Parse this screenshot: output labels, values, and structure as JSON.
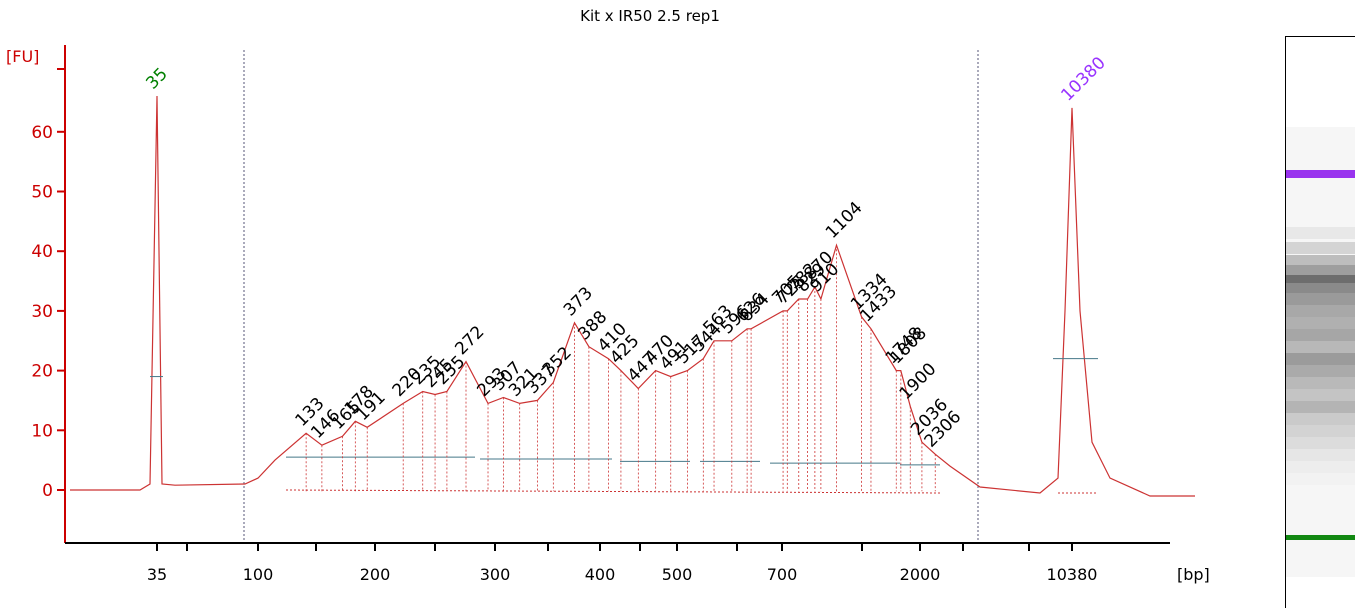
{
  "chart_data": {
    "type": "line",
    "title": "Kit x IR50 2.5 rep1",
    "ylabel": "[FU]",
    "xlabel": "[bp]",
    "ylim": [
      -9,
      73
    ],
    "yticks": [
      0,
      10,
      20,
      30,
      40,
      50,
      60
    ],
    "xticks": [
      "35",
      "100",
      "200",
      "300",
      "400",
      "500",
      "700",
      "2000",
      "10380"
    ],
    "markers": [
      {
        "label": "35",
        "color": "#008000"
      },
      {
        "label": "10380",
        "color": "#9933ff"
      }
    ],
    "peak_labels": [
      "133",
      "146",
      "165",
      "178",
      "191",
      "220",
      "235",
      "245",
      "255",
      "272",
      "293",
      "307",
      "321",
      "337",
      "352",
      "373",
      "388",
      "410",
      "425",
      "447",
      "470",
      "491",
      "517",
      "544",
      "563",
      "596",
      "626",
      "634",
      "705",
      "725",
      "782",
      "829",
      "870",
      "910",
      "1104",
      "1334",
      "1433",
      "1748",
      "1808",
      "1900",
      "2036",
      "2306"
    ],
    "series": [
      {
        "x": [
          "35",
          "100",
          "133",
          "146",
          "165",
          "178",
          "191",
          "220",
          "235",
          "245",
          "255",
          "272",
          "293",
          "307",
          "321",
          "337",
          "352",
          "373",
          "388",
          "410",
          "425",
          "447",
          "470",
          "491",
          "517",
          "544",
          "563",
          "596",
          "626",
          "634",
          "705",
          "725",
          "782",
          "829",
          "870",
          "910",
          "1104",
          "1334",
          "1433",
          "1748",
          "1808",
          "1900",
          "2036",
          "2306",
          "10380"
        ],
        "values": [
          66,
          1,
          9.5,
          7.5,
          9,
          11.5,
          10.5,
          14.5,
          16.5,
          16,
          16.5,
          21.5,
          14.5,
          15.5,
          14.5,
          15,
          18,
          28,
          24,
          22,
          20,
          17,
          20,
          19,
          20,
          22,
          25,
          25,
          27,
          27,
          30,
          30,
          32,
          32,
          34,
          32,
          41,
          29,
          27,
          20,
          20,
          14,
          8,
          6,
          64
        ]
      }
    ],
    "colors": {
      "trace": "#cc3333",
      "axis": "#cc0000",
      "marker_low": "#008000",
      "marker_high": "#9933ff"
    },
    "grid": false
  }
}
